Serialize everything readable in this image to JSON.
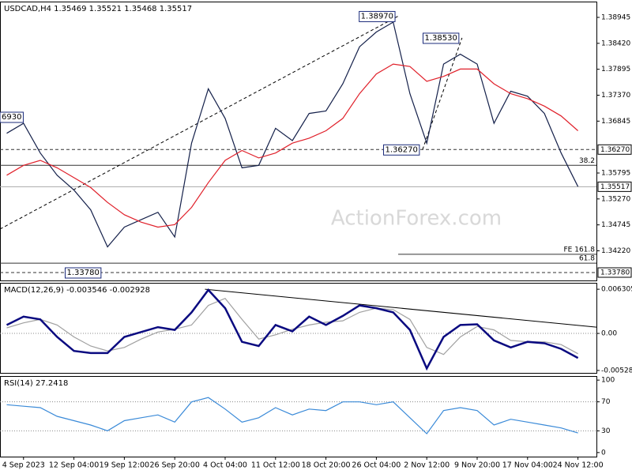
{
  "chart_data": [
    {
      "type": "line",
      "title": "USDCAD,H4  1.35469 1.35521 1.35468 1.35517",
      "watermark": "ActionForex.com",
      "xlim": [
        -2.8,
        68.2
      ],
      "ylim": [
        1.3362,
        1.39265
      ],
      "yticks": [
        1.38945,
        {
          "value": 1.3842,
          "label": "1.38420"
        },
        1.37895,
        {
          "value": 1.3737,
          "label": "1.37370"
        },
        1.36845,
        1.35795,
        {
          "value": 1.3527,
          "label": "1.35270"
        },
        1.34745,
        {
          "value": 1.3422,
          "label": "1.34220"
        }
      ],
      "x": [
        -2,
        0,
        2,
        4,
        6,
        8,
        10,
        12,
        14,
        16,
        18,
        20,
        22,
        24,
        26,
        28,
        30,
        32,
        34,
        36,
        38,
        40,
        42,
        44,
        46,
        48,
        50,
        52,
        54,
        56,
        58,
        60,
        62,
        64,
        66
      ],
      "series": [
        {
          "color": "#14204a",
          "values": [
            1.366,
            1.368,
            1.362,
            1.3575,
            1.3545,
            1.3505,
            1.343,
            1.347,
            1.3485,
            1.35,
            1.345,
            1.364,
            1.375,
            1.369,
            1.359,
            1.3595,
            1.367,
            1.3645,
            1.37,
            1.3705,
            1.376,
            1.3835,
            1.3865,
            1.3885,
            1.374,
            1.364,
            1.38,
            1.382,
            1.38,
            1.368,
            1.3745,
            1.3735,
            1.37,
            1.362,
            1.3552
          ]
        },
        {
          "color": "#e0202a",
          "values": [
            1.3575,
            1.3595,
            1.3605,
            1.359,
            1.357,
            1.355,
            1.352,
            1.3495,
            1.348,
            1.347,
            1.3475,
            1.351,
            1.356,
            1.3605,
            1.3625,
            1.361,
            1.362,
            1.364,
            1.365,
            1.3665,
            1.369,
            1.374,
            1.378,
            1.38,
            1.3795,
            1.3765,
            1.3775,
            1.379,
            1.379,
            1.376,
            1.374,
            1.373,
            1.3715,
            1.3695,
            1.3665
          ]
        }
      ],
      "levels": [
        {
          "value": 1.3627,
          "style": "dashed",
          "color": "#333333"
        },
        {
          "value": 1.3595,
          "style": "solid",
          "color": "#333333",
          "label": "38.2"
        },
        {
          "value": 1.35517,
          "style": "solid",
          "color": "#aaaaaa"
        },
        {
          "value": 1.3415,
          "style": "solid",
          "color": "#333333",
          "label": "FE 161.8",
          "x_start": 44.6
        },
        {
          "value": 1.3397,
          "style": "solid",
          "color": "#333333",
          "label": "61.8"
        },
        {
          "value": 1.3378,
          "style": "dashed",
          "color": "#333333"
        }
      ],
      "trendlines": [
        {
          "x": [
            -2.8,
            44.6
          ],
          "y": [
            1.3466,
            1.3897
          ],
          "style": "dashed"
        },
        {
          "x": [
            47.5,
            52.2
          ],
          "y": [
            1.3627,
            1.3853
          ],
          "style": "dashed"
        }
      ],
      "callouts": [
        {
          "label": "6930",
          "value": 1.3693,
          "x": -2.8,
          "anchor": "start"
        },
        {
          "label": "1.38970",
          "value": 1.3897,
          "x": 44.6,
          "anchor": "end"
        },
        {
          "label": "1.38530",
          "value": 1.3853,
          "x": 52.2,
          "anchor": "end"
        },
        {
          "label": "1.36270",
          "value": 1.3627,
          "x": 47.5,
          "anchor": "end"
        },
        {
          "label": "1.33780",
          "value": 1.3378,
          "x": 9.6,
          "anchor": "end"
        }
      ],
      "price_labels": [
        {
          "value": 1.3627,
          "label": "1.36270"
        },
        {
          "value": 1.35517,
          "label": "1.35517"
        },
        {
          "value": 1.3378,
          "label": "1.33780"
        }
      ]
    },
    {
      "type": "line",
      "title": "MACD(12,26,9) -0.003546 -0.002928",
      "xlim": [
        -2.8,
        68.2
      ],
      "ylim": [
        -0.00563,
        0.00722
      ],
      "yticks": [
        0.006305,
        {
          "value": 0,
          "label": "0.00"
        },
        -0.005283
      ],
      "x": [
        -2,
        0,
        2,
        4,
        6,
        8,
        10,
        12,
        14,
        16,
        18,
        20,
        22,
        24,
        26,
        28,
        30,
        32,
        34,
        36,
        38,
        40,
        42,
        44,
        46,
        48,
        50,
        52,
        54,
        56,
        58,
        60,
        62,
        64,
        66
      ],
      "series": [
        {
          "color": "#a0a0a0",
          "values": [
            0.0008,
            0.0015,
            0.002,
            0.0012,
            -0.0005,
            -0.0018,
            -0.0025,
            -0.002,
            -0.0008,
            0.0002,
            0.0006,
            0.0012,
            0.004,
            0.005,
            0.002,
            -0.0008,
            -0.0002,
            0.0006,
            0.0012,
            0.0016,
            0.0018,
            0.003,
            0.0036,
            0.0034,
            0.002,
            -0.002,
            -0.003,
            -0.0005,
            0.001,
            0.0005,
            -0.001,
            -0.0012,
            -0.0012,
            -0.0016,
            -0.0029
          ]
        },
        {
          "color": "#0a0a80",
          "values": [
            0.0012,
            0.0024,
            0.002,
            -0.0005,
            -0.0025,
            -0.0028,
            -0.0028,
            -0.0005,
            0.0002,
            0.0009,
            0.0005,
            0.003,
            0.0062,
            0.0036,
            -0.0012,
            -0.0018,
            0.0012,
            0.0003,
            0.0024,
            0.0012,
            0.0025,
            0.004,
            0.0036,
            0.003,
            0.0005,
            -0.005,
            -0.0005,
            0.0012,
            0.0013,
            -0.001,
            -0.002,
            -0.0012,
            -0.0014,
            -0.0022,
            -0.0035
          ]
        }
      ],
      "levels": [
        {
          "value": 0,
          "style": "dotted",
          "color": "#888888"
        }
      ],
      "trendlines": [
        {
          "x": [
            21.6,
            68.2
          ],
          "y": [
            0.0063,
            0.0009
          ],
          "style": "solid"
        }
      ]
    },
    {
      "type": "line",
      "title": "RSI(14) 27.2418",
      "xlim": [
        -2.8,
        68.2
      ],
      "ylim": [
        -5.6,
        105.6
      ],
      "yticks": [
        100,
        70,
        30,
        0
      ],
      "xticks": [
        {
          "value": 0,
          "label": "4 Sep 2023"
        },
        {
          "value": 6,
          "label": "12 Sep 04:00"
        },
        {
          "value": 12,
          "label": "19 Sep 12:00"
        },
        {
          "value": 18,
          "label": "26 Sep 20:00"
        },
        {
          "value": 24,
          "label": "4 Oct 04:00"
        },
        {
          "value": 30,
          "label": "11 Oct 12:00"
        },
        {
          "value": 36,
          "label": "18 Oct 20:00"
        },
        {
          "value": 42,
          "label": "26 Oct 04:00"
        },
        {
          "value": 48,
          "label": "2 Nov 12:00"
        },
        {
          "value": 54,
          "label": "9 Nov 20:00"
        },
        {
          "value": 60,
          "label": "17 Nov 04:00"
        },
        {
          "value": 66,
          "label": "24 Nov 12:00"
        }
      ],
      "x": [
        -2,
        0,
        2,
        4,
        6,
        8,
        10,
        12,
        14,
        16,
        18,
        20,
        22,
        24,
        26,
        28,
        30,
        32,
        34,
        36,
        38,
        40,
        42,
        44,
        46,
        48,
        50,
        52,
        54,
        56,
        58,
        60,
        62,
        64,
        66
      ],
      "series": [
        {
          "color": "#3a8ad8",
          "values": [
            66,
            64,
            62,
            50,
            44,
            38,
            30,
            44,
            48,
            52,
            42,
            70,
            76,
            60,
            42,
            48,
            62,
            52,
            60,
            58,
            70,
            70,
            66,
            70,
            48,
            26,
            58,
            62,
            58,
            38,
            46,
            42,
            38,
            34,
            27
          ]
        }
      ],
      "levels": [
        {
          "value": 70,
          "style": "dotted",
          "color": "#888888"
        },
        {
          "value": 30,
          "style": "dotted",
          "color": "#888888"
        }
      ]
    }
  ]
}
